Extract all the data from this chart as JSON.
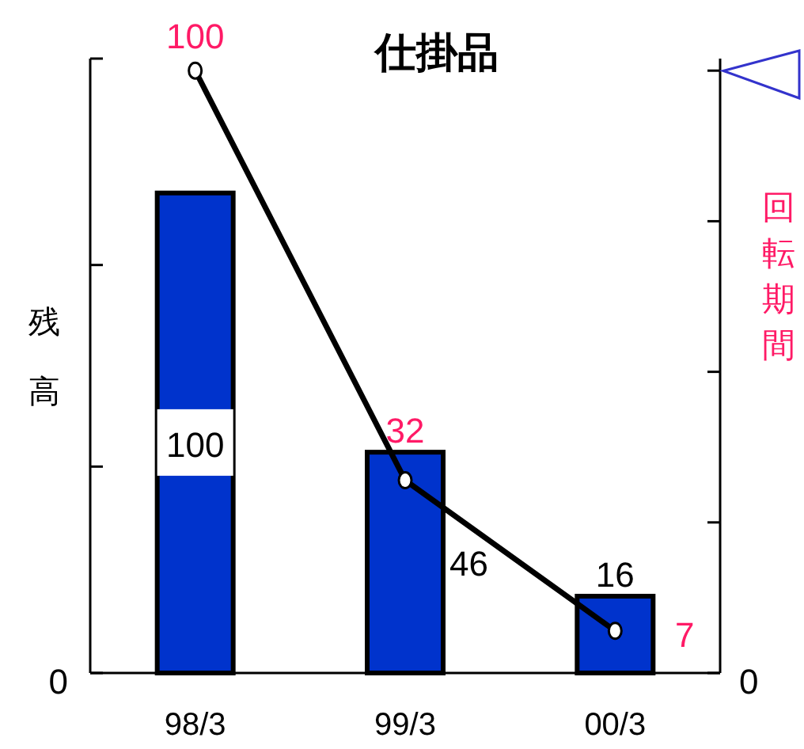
{
  "chart_data": {
    "type": "bar",
    "title": "仕掛品",
    "ylabel": "残高",
    "y2label": "回転期間",
    "categories": [
      "98/3",
      "99/3",
      "00/3"
    ],
    "series": [
      {
        "color": "#0033cc",
        "values": [
          100,
          46,
          16
        ]
      },
      {
        "type": "line",
        "axis": "y2",
        "color": "#000000",
        "values": [
          100,
          32,
          7
        ]
      }
    ],
    "annotations": [
      "0",
      "0"
    ],
    "ylim": [
      0,
      128
    ],
    "yticks": [
      {
        "value": 0,
        "label": null
      },
      {
        "value": 43,
        "label": null
      },
      {
        "value": 85,
        "label": null
      },
      {
        "value": 128,
        "label": null
      }
    ],
    "y2lim": [
      0,
      102
    ],
    "y2ticks": [
      {
        "value": 0,
        "label": null
      },
      {
        "value": 25,
        "label": null
      },
      {
        "value": 50,
        "label": null
      },
      {
        "value": 75,
        "label": null
      },
      {
        "value": 100,
        "label": null
      }
    ],
    "marker": "circle",
    "data_labels": true,
    "grid": false,
    "legend": false
  }
}
